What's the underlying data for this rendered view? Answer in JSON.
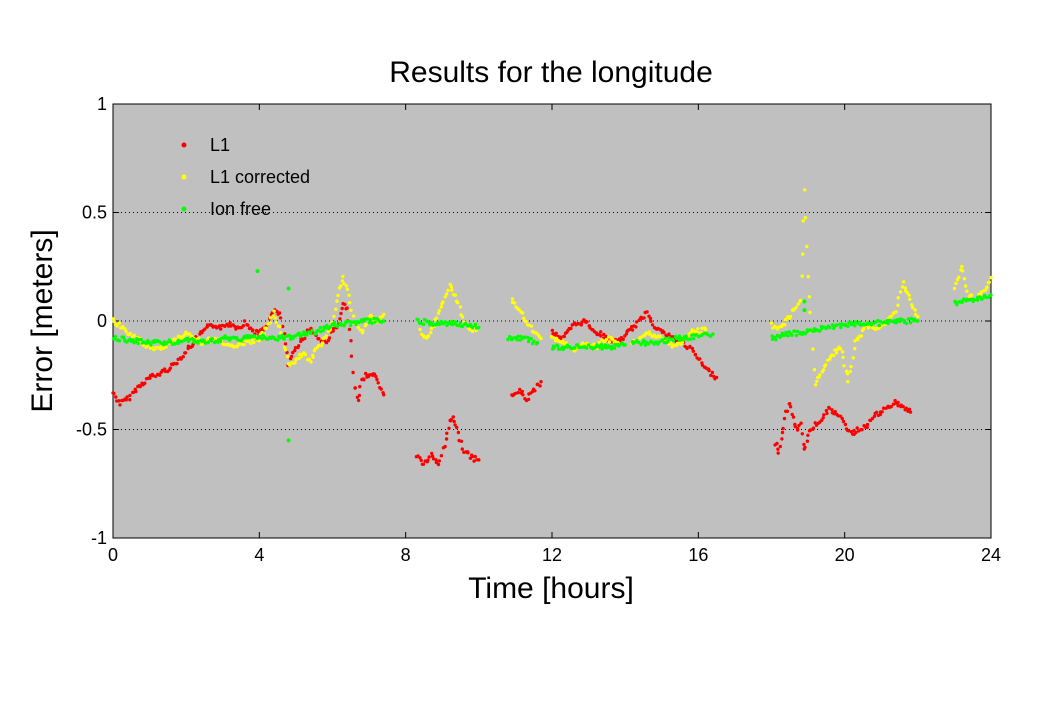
{
  "chart_data": {
    "type": "scatter",
    "title": "Results for the longitude",
    "xlabel": "Time [hours]",
    "ylabel": "Error [meters]",
    "xlim": [
      0,
      24
    ],
    "ylim": [
      -1,
      1
    ],
    "xticks": [
      0,
      4,
      8,
      12,
      16,
      20,
      24
    ],
    "xtick_labels": [
      "0",
      "4",
      "8",
      "12",
      "16",
      "20",
      "24"
    ],
    "yticks": [
      1,
      0.5,
      0,
      -0.5,
      -1
    ],
    "ytick_labels": [
      "1",
      "0.5",
      "0",
      "-0.5",
      "-1"
    ],
    "grid": "dotted horizontal at y = 0.5, 0, -0.5",
    "plot_background": "#c0c0c0",
    "legend_position": "top-left",
    "series": [
      {
        "name": "L1",
        "color": "#ff0000",
        "segments": [
          [
            [
              0.0,
              -0.33
            ],
            [
              0.2,
              -0.38
            ],
            [
              0.4,
              -0.36
            ],
            [
              0.6,
              -0.32
            ],
            [
              0.8,
              -0.29
            ],
            [
              1.0,
              -0.26
            ],
            [
              1.2,
              -0.25
            ],
            [
              1.4,
              -0.23
            ],
            [
              1.6,
              -0.21
            ],
            [
              1.8,
              -0.18
            ],
            [
              2.0,
              -0.14
            ],
            [
              2.2,
              -0.1
            ],
            [
              2.4,
              -0.06
            ],
            [
              2.6,
              -0.03
            ],
            [
              2.8,
              -0.02
            ],
            [
              3.0,
              -0.03
            ],
            [
              3.2,
              -0.01
            ],
            [
              3.4,
              -0.03
            ],
            [
              3.6,
              -0.01
            ],
            [
              3.8,
              -0.04
            ],
            [
              4.0,
              -0.06
            ],
            [
              4.2,
              -0.02
            ],
            [
              4.4,
              0.05
            ],
            [
              4.6,
              0.02
            ],
            [
              4.8,
              -0.2
            ],
            [
              5.0,
              -0.12
            ],
            [
              5.2,
              -0.08
            ],
            [
              5.4,
              -0.03
            ],
            [
              5.6,
              -0.08
            ],
            [
              5.8,
              -0.1
            ],
            [
              6.0,
              -0.05
            ],
            [
              6.2,
              0.0
            ],
            [
              6.3,
              0.08
            ],
            [
              6.4,
              0.05
            ],
            [
              6.5,
              -0.1
            ],
            [
              6.6,
              -0.3
            ],
            [
              6.7,
              -0.36
            ],
            [
              6.8,
              -0.28
            ],
            [
              6.9,
              -0.25
            ],
            [
              7.0,
              -0.26
            ],
            [
              7.1,
              -0.24
            ],
            [
              7.2,
              -0.26
            ],
            [
              7.3,
              -0.3
            ],
            [
              7.4,
              -0.34
            ]
          ],
          [
            [
              8.3,
              -0.62
            ],
            [
              8.5,
              -0.66
            ],
            [
              8.7,
              -0.62
            ],
            [
              8.9,
              -0.66
            ],
            [
              9.1,
              -0.55
            ],
            [
              9.2,
              -0.46
            ],
            [
              9.3,
              -0.44
            ],
            [
              9.4,
              -0.5
            ],
            [
              9.6,
              -0.6
            ],
            [
              9.8,
              -0.63
            ],
            [
              10.0,
              -0.64
            ]
          ],
          [
            [
              10.9,
              -0.35
            ],
            [
              11.1,
              -0.32
            ],
            [
              11.3,
              -0.36
            ],
            [
              11.5,
              -0.32
            ],
            [
              11.7,
              -0.28
            ]
          ],
          [
            [
              12.0,
              -0.05
            ],
            [
              12.3,
              -0.08
            ],
            [
              12.6,
              -0.02
            ],
            [
              12.9,
              0.0
            ],
            [
              13.2,
              -0.05
            ],
            [
              13.5,
              -0.08
            ],
            [
              13.8,
              -0.1
            ],
            [
              14.1,
              -0.05
            ],
            [
              14.4,
              0.0
            ],
            [
              14.6,
              0.04
            ],
            [
              14.8,
              -0.02
            ],
            [
              15.0,
              -0.05
            ],
            [
              15.3,
              -0.08
            ],
            [
              15.6,
              -0.1
            ],
            [
              15.9,
              -0.15
            ],
            [
              16.2,
              -0.22
            ],
            [
              16.5,
              -0.26
            ]
          ],
          [
            [
              18.1,
              -0.56
            ],
            [
              18.2,
              -0.6
            ],
            [
              18.3,
              -0.52
            ],
            [
              18.4,
              -0.42
            ],
            [
              18.5,
              -0.38
            ],
            [
              18.6,
              -0.45
            ],
            [
              18.7,
              -0.5
            ],
            [
              18.8,
              -0.48
            ],
            [
              18.9,
              -0.6
            ],
            [
              19.0,
              -0.52
            ],
            [
              19.2,
              -0.48
            ],
            [
              19.4,
              -0.44
            ],
            [
              19.6,
              -0.4
            ],
            [
              19.8,
              -0.43
            ],
            [
              20.0,
              -0.48
            ],
            [
              20.2,
              -0.52
            ],
            [
              20.4,
              -0.5
            ],
            [
              20.6,
              -0.48
            ],
            [
              20.8,
              -0.44
            ],
            [
              21.0,
              -0.42
            ],
            [
              21.2,
              -0.4
            ],
            [
              21.4,
              -0.37
            ],
            [
              21.6,
              -0.4
            ],
            [
              21.8,
              -0.42
            ]
          ]
        ]
      },
      {
        "name": "L1 corrected",
        "color": "#ffff00",
        "segments": [
          [
            [
              0.0,
              0.0
            ],
            [
              0.4,
              -0.05
            ],
            [
              0.8,
              -0.1
            ],
            [
              1.2,
              -0.13
            ],
            [
              1.6,
              -0.1
            ],
            [
              2.0,
              -0.06
            ],
            [
              2.4,
              -0.1
            ],
            [
              2.8,
              -0.08
            ],
            [
              3.2,
              -0.12
            ],
            [
              3.6,
              -0.1
            ],
            [
              4.0,
              -0.08
            ],
            [
              4.2,
              -0.03
            ],
            [
              4.4,
              0.04
            ],
            [
              4.6,
              -0.05
            ],
            [
              4.8,
              -0.2
            ],
            [
              5.0,
              -0.18
            ],
            [
              5.2,
              -0.15
            ],
            [
              5.4,
              -0.18
            ],
            [
              5.6,
              -0.12
            ],
            [
              5.8,
              -0.08
            ],
            [
              6.0,
              0.0
            ],
            [
              6.2,
              0.15
            ],
            [
              6.3,
              0.2
            ],
            [
              6.4,
              0.15
            ],
            [
              6.6,
              0.0
            ],
            [
              6.8,
              -0.05
            ],
            [
              7.0,
              0.02
            ],
            [
              7.2,
              0.0
            ],
            [
              7.4,
              0.03
            ]
          ],
          [
            [
              8.4,
              -0.05
            ],
            [
              8.6,
              -0.08
            ],
            [
              8.8,
              0.0
            ],
            [
              9.0,
              0.08
            ],
            [
              9.2,
              0.16
            ],
            [
              9.4,
              0.1
            ],
            [
              9.6,
              0.0
            ],
            [
              9.8,
              -0.04
            ],
            [
              10.0,
              -0.03
            ]
          ],
          [
            [
              10.9,
              0.1
            ],
            [
              11.1,
              0.05
            ],
            [
              11.3,
              0.0
            ],
            [
              11.5,
              -0.05
            ],
            [
              11.7,
              -0.08
            ]
          ],
          [
            [
              12.0,
              -0.08
            ],
            [
              12.3,
              -0.1
            ],
            [
              12.6,
              -0.13
            ],
            [
              12.9,
              -0.1
            ],
            [
              13.2,
              -0.12
            ],
            [
              13.5,
              -0.08
            ],
            [
              13.8,
              -0.1
            ]
          ],
          [
            [
              14.2,
              -0.1
            ],
            [
              14.6,
              -0.05
            ],
            [
              15.0,
              -0.08
            ],
            [
              15.4,
              -0.12
            ],
            [
              15.8,
              -0.05
            ],
            [
              16.2,
              -0.04
            ]
          ],
          [
            [
              18.0,
              -0.02
            ],
            [
              18.2,
              -0.04
            ],
            [
              18.4,
              0.0
            ],
            [
              18.6,
              0.05
            ],
            [
              18.8,
              0.1
            ],
            [
              18.85,
              0.3
            ],
            [
              18.9,
              0.6
            ],
            [
              19.0,
              0.2
            ],
            [
              19.1,
              -0.05
            ],
            [
              19.2,
              -0.3
            ],
            [
              19.3,
              -0.25
            ],
            [
              19.5,
              -0.2
            ],
            [
              19.7,
              -0.15
            ],
            [
              19.9,
              -0.12
            ],
            [
              20.0,
              -0.2
            ],
            [
              20.1,
              -0.27
            ],
            [
              20.3,
              -0.1
            ],
            [
              20.6,
              -0.02
            ],
            [
              20.9,
              -0.03
            ],
            [
              21.2,
              0.0
            ],
            [
              21.4,
              0.05
            ],
            [
              21.6,
              0.18
            ],
            [
              21.8,
              0.1
            ],
            [
              22.0,
              0.02
            ]
          ],
          [
            [
              23.0,
              0.15
            ],
            [
              23.2,
              0.25
            ],
            [
              23.4,
              0.12
            ],
            [
              23.6,
              0.1
            ],
            [
              23.8,
              0.13
            ],
            [
              24.0,
              0.2
            ]
          ]
        ]
      },
      {
        "name": "Ion free",
        "color": "#00ff00",
        "segments": [
          [
            [
              0.0,
              -0.08
            ],
            [
              0.5,
              -0.09
            ],
            [
              1.0,
              -0.1
            ],
            [
              1.5,
              -0.1
            ],
            [
              2.0,
              -0.09
            ],
            [
              2.5,
              -0.1
            ],
            [
              3.0,
              -0.08
            ],
            [
              3.5,
              -0.08
            ],
            [
              4.0,
              -0.07
            ],
            [
              4.5,
              -0.08
            ],
            [
              5.0,
              -0.07
            ],
            [
              5.5,
              -0.05
            ],
            [
              6.0,
              -0.02
            ],
            [
              6.5,
              -0.01
            ],
            [
              7.0,
              0.0
            ],
            [
              7.4,
              0.0
            ]
          ],
          [
            [
              8.3,
              0.0
            ],
            [
              8.8,
              -0.01
            ],
            [
              9.3,
              -0.01
            ],
            [
              9.8,
              -0.02
            ],
            [
              10.0,
              -0.03
            ]
          ],
          [
            [
              10.8,
              -0.08
            ],
            [
              11.2,
              -0.08
            ],
            [
              11.6,
              -0.1
            ]
          ],
          [
            [
              12.0,
              -0.12
            ],
            [
              12.5,
              -0.12
            ],
            [
              13.0,
              -0.12
            ],
            [
              13.5,
              -0.12
            ],
            [
              14.0,
              -0.11
            ]
          ],
          [
            [
              14.2,
              -0.1
            ],
            [
              14.8,
              -0.1
            ],
            [
              15.4,
              -0.08
            ],
            [
              16.0,
              -0.07
            ],
            [
              16.4,
              -0.06
            ]
          ],
          [
            [
              18.0,
              -0.08
            ],
            [
              18.5,
              -0.06
            ],
            [
              19.0,
              -0.05
            ],
            [
              19.5,
              -0.03
            ],
            [
              20.0,
              -0.02
            ],
            [
              20.5,
              -0.01
            ],
            [
              21.0,
              -0.01
            ],
            [
              21.5,
              0.0
            ],
            [
              22.0,
              0.0
            ]
          ],
          [
            [
              23.0,
              0.08
            ],
            [
              23.5,
              0.1
            ],
            [
              24.0,
              0.12
            ]
          ]
        ],
        "outliers": [
          [
            3.95,
            0.23
          ],
          [
            4.8,
            0.15
          ],
          [
            4.8,
            -0.55
          ],
          [
            18.9,
            0.09
          ],
          [
            18.9,
            0.05
          ]
        ]
      }
    ]
  }
}
